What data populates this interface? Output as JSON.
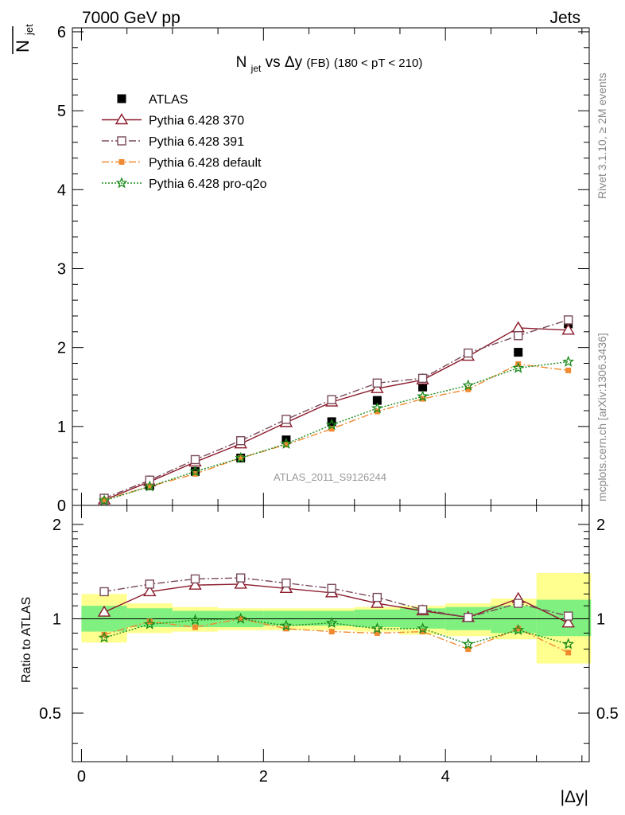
{
  "header": {
    "beam": "7000 GeV pp",
    "category": "Jets",
    "analysis_id": "ATLAS_2011_S9126244",
    "side_label_top": "Rivet 3.1.10, ≥ 2M events",
    "side_label_bottom": "mcplots.cern.ch [arXiv:1306.3436]"
  },
  "colors": {
    "atlas": "#000000",
    "p370": "#8b1a2b",
    "p391": "#7a4a5a",
    "pdefault": "#f08a30",
    "pq2o": "#1a8a1a",
    "band_inner": "#80f080",
    "band_outer": "#ffff90"
  },
  "chart_data": [
    {
      "type": "scatter",
      "panel": "main",
      "title": "N_jet vs Δy (FB) (180 < pT < 210)",
      "title_parts": {
        "main": "N",
        "sub": "jet",
        "vs": " vs Δy",
        "small": " (FB)",
        "cut": " (180 < pT < 210)"
      },
      "ylabel": "N̅_jet",
      "ylabel_parts": {
        "main": "N",
        "sub": "jet"
      },
      "xlabel": "",
      "xlim": [
        -0.1,
        5.58
      ],
      "ylim": [
        0,
        6.05
      ],
      "y_ticks": [
        0,
        1,
        2,
        3,
        4,
        5,
        6
      ],
      "y_tick_labels": [
        "0",
        "1",
        "2",
        "3",
        "4",
        "5",
        "6"
      ],
      "legend_position": "top-left",
      "x": [
        0.25,
        0.75,
        1.25,
        1.75,
        2.25,
        2.75,
        3.25,
        3.75,
        4.25,
        4.8,
        5.35
      ],
      "series": [
        {
          "name": "ATLAS",
          "key": "atlas",
          "marker": "square-filled",
          "line": "none",
          "values": [
            0.07,
            0.25,
            0.43,
            0.6,
            0.83,
            1.06,
            1.33,
            1.5,
            1.92,
            1.94,
            2.3
          ]
        },
        {
          "name": "Pythia 6.428 370",
          "key": "p370",
          "marker": "triangle-open",
          "line": "solid",
          "values": [
            0.07,
            0.3,
            0.55,
            0.78,
            1.05,
            1.31,
            1.48,
            1.59,
            1.89,
            2.25,
            2.22
          ]
        },
        {
          "name": "Pythia 6.428 391",
          "key": "p391",
          "marker": "square-open",
          "line": "dashdot",
          "values": [
            0.09,
            0.32,
            0.58,
            0.82,
            1.09,
            1.34,
            1.55,
            1.61,
            1.93,
            2.15,
            2.35
          ]
        },
        {
          "name": "Pythia 6.428 default",
          "key": "pdefault",
          "marker": "square-filled-small",
          "line": "dashdot",
          "values": [
            0.07,
            0.24,
            0.4,
            0.6,
            0.77,
            0.97,
            1.19,
            1.35,
            1.47,
            1.79,
            1.71
          ]
        },
        {
          "name": "Pythia 6.428 pro-q2o",
          "key": "pq2o",
          "marker": "star-open",
          "line": "dotted",
          "values": [
            0.06,
            0.24,
            0.43,
            0.6,
            0.78,
            1.02,
            1.23,
            1.38,
            1.52,
            1.74,
            1.82
          ]
        }
      ]
    },
    {
      "type": "scatter",
      "panel": "ratio",
      "ylabel": "Ratio to ATLAS",
      "xlabel": "|Δy|",
      "xlim": [
        -0.1,
        5.58
      ],
      "ylim": [
        0.35,
        2.3
      ],
      "y_ticks": [
        0.5,
        1,
        2
      ],
      "y_tick_labels": [
        "0.5",
        "1",
        "2"
      ],
      "x_ticks": [
        0,
        2,
        4
      ],
      "x_tick_labels": [
        "0",
        "2",
        "4"
      ],
      "x": [
        0.25,
        0.75,
        1.25,
        1.75,
        2.25,
        2.75,
        3.25,
        3.75,
        4.25,
        4.8,
        5.35
      ],
      "bands": {
        "edges": [
          0,
          0.5,
          1.0,
          1.5,
          2.0,
          2.5,
          3.0,
          3.5,
          4.0,
          4.5,
          5.0,
          5.6
        ],
        "inner": [
          [
            0.91,
            1.1
          ],
          [
            0.94,
            1.08
          ],
          [
            0.94,
            1.06
          ],
          [
            0.94,
            1.06
          ],
          [
            0.95,
            1.06
          ],
          [
            0.95,
            1.06
          ],
          [
            0.94,
            1.07
          ],
          [
            0.93,
            1.08
          ],
          [
            0.92,
            1.09
          ],
          [
            0.9,
            1.1
          ],
          [
            0.88,
            1.15
          ]
        ],
        "outer": [
          [
            0.84,
            1.2
          ],
          [
            0.9,
            1.12
          ],
          [
            0.91,
            1.09
          ],
          [
            0.92,
            1.08
          ],
          [
            0.92,
            1.08
          ],
          [
            0.92,
            1.08
          ],
          [
            0.91,
            1.09
          ],
          [
            0.89,
            1.1
          ],
          [
            0.88,
            1.12
          ],
          [
            0.86,
            1.16
          ],
          [
            0.72,
            1.4
          ]
        ]
      },
      "series": [
        {
          "name": "Pythia 6.428 370",
          "key": "p370",
          "marker": "triangle-open",
          "line": "solid",
          "values": [
            1.05,
            1.22,
            1.28,
            1.29,
            1.25,
            1.21,
            1.12,
            1.06,
            1.01,
            1.16,
            0.97
          ]
        },
        {
          "name": "Pythia 6.428 391",
          "key": "p391",
          "marker": "square-open",
          "line": "dashdot",
          "values": [
            1.22,
            1.29,
            1.34,
            1.35,
            1.3,
            1.25,
            1.17,
            1.07,
            1.01,
            1.12,
            1.02
          ]
        },
        {
          "name": "Pythia 6.428 default",
          "key": "pdefault",
          "marker": "square-filled-small",
          "line": "dashdot",
          "values": [
            0.89,
            0.98,
            0.94,
            1.0,
            0.93,
            0.91,
            0.9,
            0.91,
            0.8,
            0.93,
            0.78
          ]
        },
        {
          "name": "Pythia 6.428 pro-q2o",
          "key": "pq2o",
          "marker": "star-open",
          "line": "dotted",
          "values": [
            0.87,
            0.96,
            0.99,
            1.0,
            0.95,
            0.97,
            0.93,
            0.93,
            0.83,
            0.92,
            0.83
          ]
        }
      ]
    }
  ]
}
